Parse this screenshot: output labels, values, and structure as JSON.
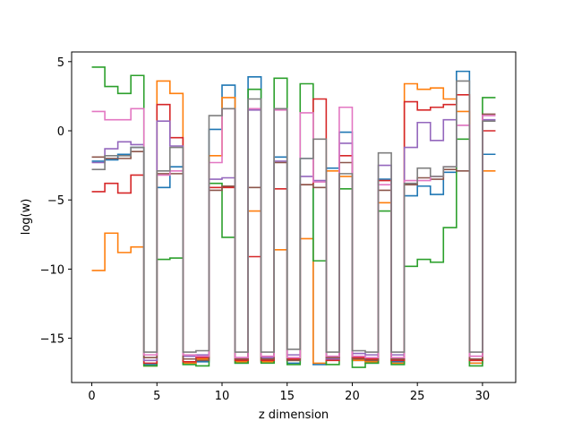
{
  "chart_data": {
    "type": "line",
    "step": "post",
    "xlabel": "z dimension",
    "ylabel": "log(w)",
    "xlim": [
      -1.55,
      32.55
    ],
    "ylim": [
      -18.2,
      5.7
    ],
    "xticks": [
      0,
      5,
      10,
      15,
      20,
      25,
      30
    ],
    "yticks": [
      5,
      0,
      -5,
      -10,
      -15
    ],
    "ytick_labels": [
      "5",
      "0",
      "−5",
      "−10",
      "−15"
    ],
    "grid": false,
    "x": [
      0,
      1,
      2,
      3,
      4,
      5,
      6,
      7,
      8,
      9,
      10,
      11,
      12,
      13,
      14,
      15,
      16,
      17,
      18,
      19,
      20,
      21,
      22,
      23,
      24,
      25,
      26,
      27,
      28,
      29,
      30,
      31
    ],
    "series": [
      {
        "color": "#1f77b4",
        "values": [
          -2.2,
          -2.1,
          -1.7,
          -1.2,
          -16.9,
          -4.1,
          -2.6,
          -16.8,
          -16.7,
          0.1,
          3.3,
          -16.8,
          3.9,
          -16.7,
          -1.9,
          -16.8,
          -2.0,
          -16.9,
          -2.7,
          -0.1,
          -16.6,
          -16.8,
          -3.5,
          -16.7,
          -4.7,
          -4.0,
          -4.6,
          -3.0,
          4.3,
          -16.8,
          -1.7,
          -1.7
        ]
      },
      {
        "color": "#ff7f0e",
        "values": [
          -10.1,
          -7.4,
          -8.8,
          -8.4,
          -17.0,
          3.6,
          2.7,
          -16.8,
          -16.5,
          -1.8,
          2.4,
          -16.7,
          -5.8,
          -16.7,
          -8.6,
          -16.6,
          -7.8,
          -16.8,
          -2.9,
          -3.3,
          -16.6,
          -16.7,
          -5.2,
          -16.8,
          3.4,
          3.0,
          3.1,
          2.3,
          1.4,
          -16.8,
          -2.9,
          -2.9
        ]
      },
      {
        "color": "#2ca02c",
        "values": [
          4.6,
          3.2,
          2.7,
          4.0,
          -17.0,
          -9.3,
          -9.2,
          -16.9,
          -17.0,
          -3.8,
          -7.7,
          -16.8,
          3.0,
          -16.8,
          3.8,
          -16.9,
          3.4,
          -9.4,
          -16.9,
          -4.2,
          -17.1,
          -16.8,
          -5.8,
          -16.9,
          -9.8,
          -9.3,
          -9.5,
          -7.0,
          -0.6,
          -17.0,
          2.4,
          2.4
        ]
      },
      {
        "color": "#d62728",
        "values": [
          -4.4,
          -3.8,
          -4.5,
          -3.2,
          -16.8,
          1.9,
          -0.5,
          -16.7,
          -16.4,
          -4.1,
          -4.1,
          -16.6,
          -9.1,
          -16.6,
          -4.2,
          -16.5,
          -3.9,
          2.3,
          -16.6,
          -1.8,
          -16.4,
          -16.5,
          -3.6,
          -16.6,
          2.1,
          1.5,
          1.7,
          1.9,
          2.6,
          -16.6,
          0.0,
          0.0
        ]
      },
      {
        "color": "#9467bd",
        "values": [
          -2.3,
          -1.3,
          -0.8,
          -1.0,
          -16.6,
          0.7,
          -1.1,
          -16.3,
          -16.2,
          -3.5,
          -3.4,
          -16.4,
          1.5,
          -16.4,
          -2.2,
          -16.2,
          -3.3,
          -3.6,
          -16.5,
          -0.9,
          -16.1,
          -16.2,
          -2.5,
          -16.2,
          -1.2,
          0.6,
          -0.7,
          0.8,
          0.4,
          -16.3,
          0.8,
          0.8
        ]
      },
      {
        "color": "#8c564b",
        "values": [
          -1.9,
          -2.0,
          -2.0,
          -1.5,
          -16.4,
          -3.1,
          -3.1,
          -16.5,
          -16.6,
          -4.3,
          -4.0,
          -16.5,
          -4.1,
          -16.5,
          -2.3,
          -16.6,
          -3.9,
          -4.1,
          -16.4,
          -2.3,
          -16.5,
          -16.6,
          -4.3,
          -16.5,
          -3.9,
          -3.4,
          -3.5,
          -2.8,
          -2.9,
          -16.5,
          1.2,
          1.2
        ]
      },
      {
        "color": "#e377c2",
        "values": [
          1.4,
          0.8,
          0.8,
          1.6,
          -16.2,
          -3.2,
          -2.9,
          -16.2,
          -16.3,
          -2.3,
          1.6,
          -16.4,
          1.6,
          -16.3,
          1.5,
          -16.4,
          1.3,
          -3.7,
          -16.3,
          1.7,
          -16.3,
          -16.4,
          -3.9,
          -16.4,
          -3.6,
          -3.6,
          -3.3,
          -2.6,
          0.4,
          -16.3,
          1.1,
          1.1
        ]
      },
      {
        "color": "#7f7f7f",
        "values": [
          -2.8,
          -1.8,
          -1.8,
          -1.2,
          -16.0,
          -2.9,
          -1.2,
          -16.0,
          -15.9,
          1.1,
          1.6,
          -16.0,
          2.3,
          -16.0,
          1.6,
          -15.8,
          -2.0,
          -0.6,
          -16.0,
          -3.1,
          -15.9,
          -16.0,
          -1.6,
          -16.0,
          -3.8,
          -2.7,
          -3.3,
          -2.6,
          3.6,
          -16.0,
          0.7,
          0.7
        ]
      }
    ]
  }
}
